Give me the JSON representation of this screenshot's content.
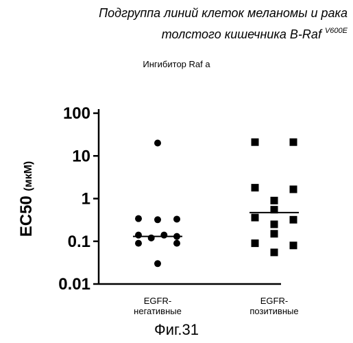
{
  "page_title": {
    "line1": "Подгруппа линий клеток меланомы и рака",
    "line2": "толстого кишечника B-Raf",
    "superscript": "V600E"
  },
  "chart_subtitle": "Ингибитор Raf a",
  "figure_label": "Фиг.31",
  "chart_data": {
    "type": "scatter",
    "title": "",
    "ylabel_main": "EC50",
    "ylabel_unit": "(мкМ)",
    "yscale": "log",
    "ylim": [
      0.01,
      100
    ],
    "yticks": [
      100,
      10,
      1,
      0.1,
      0.01
    ],
    "ytick_labels": [
      "100",
      "10",
      "1",
      "0.1",
      "0.01"
    ],
    "categories": [
      {
        "line1": "EGFR-",
        "line2": "негативные"
      },
      {
        "line1": "EGFR-",
        "line2": "позитивные"
      }
    ],
    "series": [
      {
        "marker": "circle",
        "values": [
          20,
          0.34,
          0.32,
          0.33,
          0.14,
          0.12,
          0.14,
          0.13,
          0.09,
          0.09,
          0.03
        ],
        "median": 0.13
      },
      {
        "marker": "square",
        "values": [
          21,
          21,
          1.8,
          1.65,
          0.9,
          0.55,
          0.36,
          0.32,
          0.25,
          0.15,
          0.09,
          0.08,
          0.055
        ],
        "median": 0.47
      }
    ]
  }
}
